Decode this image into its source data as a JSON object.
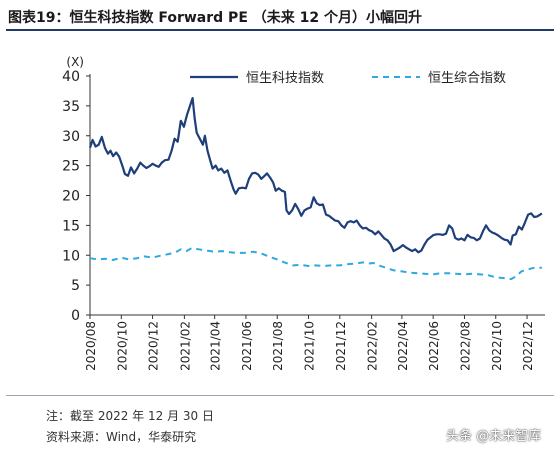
{
  "header": {
    "title": "图表19：恒生科技指数 Forward PE （未来 12 个月）小幅回升"
  },
  "footer": {
    "note": "注：截至 2022 年 12 月 30 日",
    "source": "资料来源：Wind，华泰研究"
  },
  "watermark": {
    "text": "头条 @未来智库"
  },
  "chart_data": {
    "type": "line",
    "title": "",
    "unit_label": "(X)",
    "xlabel": "",
    "ylabel": "",
    "ylim": [
      0,
      40
    ],
    "yticks": [
      0,
      5,
      10,
      15,
      20,
      25,
      30,
      35,
      40
    ],
    "xlim": [
      "2020-08-01",
      "2023-01-05"
    ],
    "xticks": [
      "2020/08",
      "2020/10",
      "2020/12",
      "2021/02",
      "2021/04",
      "2021/06",
      "2021/08",
      "2021/10",
      "2021/12",
      "2022/02",
      "2022/04",
      "2022/06",
      "2022/08",
      "2022/10",
      "2022/12"
    ],
    "grid": false,
    "legend": "top",
    "series": [
      {
        "name": "恒生科技指数",
        "color": "#1f3f7a",
        "style": "solid",
        "points": [
          [
            "2020-08-01",
            28.0
          ],
          [
            "2020-08-06",
            29.3
          ],
          [
            "2020-08-12",
            28.2
          ],
          [
            "2020-08-18",
            28.5
          ],
          [
            "2020-08-24",
            29.8
          ],
          [
            "2020-08-30",
            28.0
          ],
          [
            "2020-09-05",
            27.0
          ],
          [
            "2020-09-10",
            27.5
          ],
          [
            "2020-09-15",
            26.6
          ],
          [
            "2020-09-21",
            27.2
          ],
          [
            "2020-09-27",
            26.5
          ],
          [
            "2020-10-03",
            25.0
          ],
          [
            "2020-10-08",
            23.6
          ],
          [
            "2020-10-14",
            23.3
          ],
          [
            "2020-10-20",
            24.7
          ],
          [
            "2020-10-26",
            23.7
          ],
          [
            "2020-11-01",
            24.5
          ],
          [
            "2020-11-07",
            25.5
          ],
          [
            "2020-11-13",
            25.0
          ],
          [
            "2020-11-19",
            24.6
          ],
          [
            "2020-11-25",
            24.9
          ],
          [
            "2020-12-01",
            25.3
          ],
          [
            "2020-12-07",
            25.0
          ],
          [
            "2020-12-13",
            24.8
          ],
          [
            "2020-12-19",
            25.5
          ],
          [
            "2020-12-25",
            25.9
          ],
          [
            "2021-01-01",
            26.0
          ],
          [
            "2021-01-07",
            27.5
          ],
          [
            "2021-01-13",
            29.5
          ],
          [
            "2021-01-19",
            29.0
          ],
          [
            "2021-01-25",
            32.5
          ],
          [
            "2021-01-31",
            31.5
          ],
          [
            "2021-02-06",
            33.5
          ],
          [
            "2021-02-12",
            35.0
          ],
          [
            "2021-02-17",
            36.3
          ],
          [
            "2021-02-21",
            33.0
          ],
          [
            "2021-02-25",
            30.5
          ],
          [
            "2021-03-03",
            29.5
          ],
          [
            "2021-03-09",
            28.5
          ],
          [
            "2021-03-13",
            30.0
          ],
          [
            "2021-03-18",
            27.5
          ],
          [
            "2021-03-23",
            26.0
          ],
          [
            "2021-03-28",
            24.5
          ],
          [
            "2021-04-03",
            25.0
          ],
          [
            "2021-04-08",
            24.2
          ],
          [
            "2021-04-14",
            24.5
          ],
          [
            "2021-04-20",
            23.8
          ],
          [
            "2021-04-26",
            24.2
          ],
          [
            "2021-05-02",
            22.5
          ],
          [
            "2021-05-08",
            21.0
          ],
          [
            "2021-05-12",
            20.3
          ],
          [
            "2021-05-18",
            21.2
          ],
          [
            "2021-05-25",
            21.3
          ],
          [
            "2021-06-01",
            21.2
          ],
          [
            "2021-06-07",
            22.8
          ],
          [
            "2021-06-13",
            23.7
          ],
          [
            "2021-06-19",
            23.8
          ],
          [
            "2021-06-25",
            23.5
          ],
          [
            "2021-07-01",
            22.8
          ],
          [
            "2021-07-06",
            23.2
          ],
          [
            "2021-07-12",
            23.7
          ],
          [
            "2021-07-18",
            23.0
          ],
          [
            "2021-07-24",
            22.2
          ],
          [
            "2021-07-29",
            20.8
          ],
          [
            "2021-08-04",
            21.2
          ],
          [
            "2021-08-10",
            20.8
          ],
          [
            "2021-08-16",
            20.6
          ],
          [
            "2021-08-19",
            17.5
          ],
          [
            "2021-08-24",
            16.9
          ],
          [
            "2021-08-30",
            17.5
          ],
          [
            "2021-09-05",
            18.6
          ],
          [
            "2021-09-11",
            17.7
          ],
          [
            "2021-09-17",
            16.6
          ],
          [
            "2021-09-23",
            17.5
          ],
          [
            "2021-09-29",
            17.8
          ],
          [
            "2021-10-05",
            18.0
          ],
          [
            "2021-10-11",
            19.7
          ],
          [
            "2021-10-17",
            18.7
          ],
          [
            "2021-10-23",
            18.4
          ],
          [
            "2021-10-29",
            18.5
          ],
          [
            "2021-11-04",
            16.8
          ],
          [
            "2021-11-10",
            16.6
          ],
          [
            "2021-11-16",
            16.2
          ],
          [
            "2021-11-22",
            15.8
          ],
          [
            "2021-11-28",
            15.7
          ],
          [
            "2021-12-04",
            15.0
          ],
          [
            "2021-12-10",
            14.6
          ],
          [
            "2021-12-16",
            15.5
          ],
          [
            "2021-12-22",
            15.7
          ],
          [
            "2021-12-28",
            15.5
          ],
          [
            "2022-01-03",
            15.8
          ],
          [
            "2022-01-09",
            15.0
          ],
          [
            "2022-01-15",
            14.5
          ],
          [
            "2022-01-21",
            14.6
          ],
          [
            "2022-01-27",
            14.2
          ],
          [
            "2022-02-02",
            14.0
          ],
          [
            "2022-02-08",
            13.5
          ],
          [
            "2022-02-14",
            14.0
          ],
          [
            "2022-02-20",
            13.4
          ],
          [
            "2022-02-26",
            12.8
          ],
          [
            "2022-03-04",
            12.5
          ],
          [
            "2022-03-10",
            11.8
          ],
          [
            "2022-03-16",
            10.7
          ],
          [
            "2022-03-22",
            11.0
          ],
          [
            "2022-03-28",
            11.3
          ],
          [
            "2022-04-03",
            11.7
          ],
          [
            "2022-04-09",
            11.3
          ],
          [
            "2022-04-15",
            11.0
          ],
          [
            "2022-04-21",
            10.7
          ],
          [
            "2022-04-27",
            11.0
          ],
          [
            "2022-05-03",
            10.5
          ],
          [
            "2022-05-09",
            10.8
          ],
          [
            "2022-05-15",
            11.8
          ],
          [
            "2022-05-21",
            12.6
          ],
          [
            "2022-05-27",
            13.0
          ],
          [
            "2022-06-02",
            13.4
          ],
          [
            "2022-06-08",
            13.5
          ],
          [
            "2022-06-14",
            13.5
          ],
          [
            "2022-06-20",
            13.4
          ],
          [
            "2022-06-26",
            13.6
          ],
          [
            "2022-07-02",
            15.0
          ],
          [
            "2022-07-08",
            14.5
          ],
          [
            "2022-07-14",
            12.9
          ],
          [
            "2022-07-20",
            12.6
          ],
          [
            "2022-07-26",
            12.8
          ],
          [
            "2022-08-01",
            12.5
          ],
          [
            "2022-08-07",
            13.4
          ],
          [
            "2022-08-13",
            13.0
          ],
          [
            "2022-08-19",
            12.9
          ],
          [
            "2022-08-25",
            12.5
          ],
          [
            "2022-08-31",
            12.8
          ],
          [
            "2022-09-06",
            14.0
          ],
          [
            "2022-09-12",
            15.0
          ],
          [
            "2022-09-18",
            14.2
          ],
          [
            "2022-09-24",
            13.8
          ],
          [
            "2022-09-30",
            13.6
          ],
          [
            "2022-10-06",
            13.3
          ],
          [
            "2022-10-12",
            12.9
          ],
          [
            "2022-10-18",
            12.6
          ],
          [
            "2022-10-24",
            12.5
          ],
          [
            "2022-10-30",
            11.8
          ],
          [
            "2022-11-03",
            13.3
          ],
          [
            "2022-11-09",
            13.5
          ],
          [
            "2022-11-15",
            14.8
          ],
          [
            "2022-11-21",
            14.3
          ],
          [
            "2022-11-27",
            15.5
          ],
          [
            "2022-12-03",
            16.8
          ],
          [
            "2022-12-09",
            17.0
          ],
          [
            "2022-12-15",
            16.4
          ],
          [
            "2022-12-21",
            16.5
          ],
          [
            "2022-12-30",
            17.0
          ]
        ]
      },
      {
        "name": "恒生综合指数",
        "color": "#2ea9df",
        "style": "dashed",
        "points": [
          [
            "2020-08-01",
            9.5
          ],
          [
            "2020-08-15",
            9.3
          ],
          [
            "2020-09-01",
            9.4
          ],
          [
            "2020-09-15",
            9.2
          ],
          [
            "2020-10-01",
            9.6
          ],
          [
            "2020-10-15",
            9.3
          ],
          [
            "2020-11-01",
            9.5
          ],
          [
            "2020-11-15",
            9.8
          ],
          [
            "2020-12-01",
            9.6
          ],
          [
            "2020-12-15",
            9.9
          ],
          [
            "2021-01-01",
            10.2
          ],
          [
            "2021-01-15",
            10.5
          ],
          [
            "2021-01-25",
            11.0
          ],
          [
            "2021-02-05",
            10.7
          ],
          [
            "2021-02-15",
            11.2
          ],
          [
            "2021-03-01",
            11.0
          ],
          [
            "2021-03-15",
            10.8
          ],
          [
            "2021-04-01",
            10.6
          ],
          [
            "2021-04-15",
            10.7
          ],
          [
            "2021-05-01",
            10.5
          ],
          [
            "2021-05-15",
            10.4
          ],
          [
            "2021-06-01",
            10.4
          ],
          [
            "2021-06-15",
            10.6
          ],
          [
            "2021-07-01",
            10.3
          ],
          [
            "2021-07-15",
            9.8
          ],
          [
            "2021-08-01",
            9.3
          ],
          [
            "2021-08-15",
            8.8
          ],
          [
            "2021-09-01",
            8.3
          ],
          [
            "2021-09-15",
            8.4
          ],
          [
            "2021-10-01",
            8.2
          ],
          [
            "2021-10-15",
            8.3
          ],
          [
            "2021-11-01",
            8.2
          ],
          [
            "2021-11-15",
            8.3
          ],
          [
            "2021-12-01",
            8.3
          ],
          [
            "2021-12-15",
            8.5
          ],
          [
            "2022-01-01",
            8.6
          ],
          [
            "2022-01-15",
            8.8
          ],
          [
            "2022-01-25",
            8.6
          ],
          [
            "2022-02-05",
            8.7
          ],
          [
            "2022-02-15",
            8.3
          ],
          [
            "2022-03-01",
            7.9
          ],
          [
            "2022-03-15",
            7.5
          ],
          [
            "2022-04-01",
            7.3
          ],
          [
            "2022-04-15",
            7.1
          ],
          [
            "2022-05-01",
            7.0
          ],
          [
            "2022-05-15",
            6.9
          ],
          [
            "2022-06-01",
            6.8
          ],
          [
            "2022-06-15",
            7.0
          ],
          [
            "2022-07-01",
            7.0
          ],
          [
            "2022-07-15",
            6.9
          ],
          [
            "2022-08-01",
            6.8
          ],
          [
            "2022-08-15",
            6.9
          ],
          [
            "2022-09-01",
            6.8
          ],
          [
            "2022-09-15",
            6.7
          ],
          [
            "2022-10-01",
            6.3
          ],
          [
            "2022-10-15",
            6.2
          ],
          [
            "2022-10-31",
            6.0
          ],
          [
            "2022-11-10",
            6.5
          ],
          [
            "2022-11-20",
            7.3
          ],
          [
            "2022-12-01",
            7.6
          ],
          [
            "2022-12-15",
            7.9
          ],
          [
            "2022-12-30",
            7.9
          ]
        ]
      }
    ]
  }
}
